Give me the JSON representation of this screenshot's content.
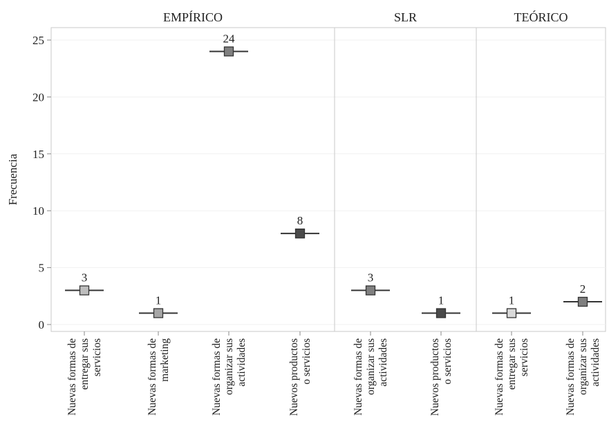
{
  "chart_data": {
    "type": "scatter",
    "ylabel": "Frecuencia",
    "ylim": [
      -0.5,
      25.8
    ],
    "yticks": [
      0,
      5,
      10,
      15,
      20,
      25
    ],
    "grid": false,
    "panels": [
      {
        "name": "EMPÍRICO",
        "points": [
          {
            "category": [
              "Nuevas formas de",
              "entregar sus",
              "servicios"
            ],
            "value": 3,
            "label": "3",
            "color": "#bdbdbd"
          },
          {
            "category": [
              "Nuevas formas de",
              "marketing"
            ],
            "value": 1,
            "label": "1",
            "color": "#a6a6a6"
          },
          {
            "category": [
              "Nuevas formas de",
              "organizar sus",
              "actividades"
            ],
            "value": 24,
            "label": "24",
            "color": "#808080"
          },
          {
            "category": [
              "Nuevos productos",
              "o servicios"
            ],
            "value": 8,
            "label": "8",
            "color": "#4a4a4a"
          }
        ]
      },
      {
        "name": "SLR",
        "points": [
          {
            "category": [
              "Nuevas formas de",
              "organizar sus",
              "actividades"
            ],
            "value": 3,
            "label": "3",
            "color": "#808080"
          },
          {
            "category": [
              "Nuevos productos",
              "o servicios"
            ],
            "value": 1,
            "label": "1",
            "color": "#4a4a4a"
          }
        ]
      },
      {
        "name": "TEÓRICO",
        "points": [
          {
            "category": [
              "Nuevas formas de",
              "entregar sus",
              "servicios"
            ],
            "value": 1,
            "label": "1",
            "color": "#d9d9d9"
          },
          {
            "category": [
              "Nuevas formas de",
              "organizar sus",
              "actividades"
            ],
            "value": 2,
            "label": "2",
            "color": "#808080"
          }
        ]
      }
    ]
  }
}
